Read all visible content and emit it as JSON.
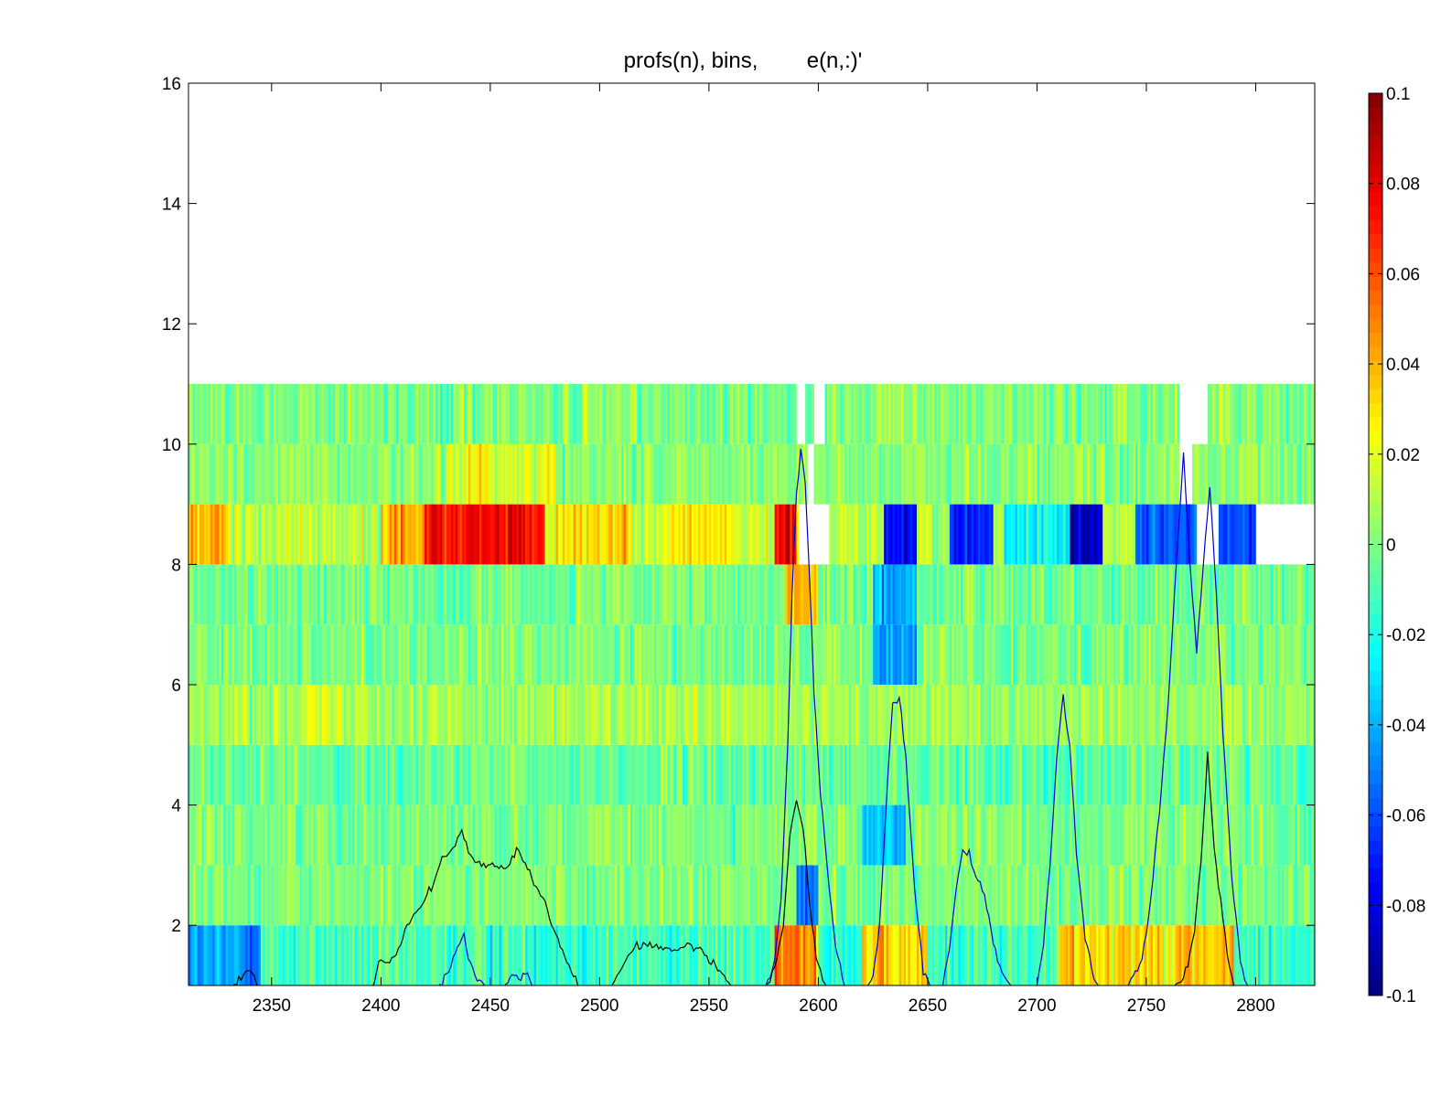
{
  "chart_data": [
    {
      "type": "heatmap",
      "title": "profs(n), bins,        e(n,:)'",
      "xlabel": "",
      "ylabel": "",
      "xlim": [
        2312,
        2827
      ],
      "ylim": [
        1,
        16
      ],
      "xticks": [
        2350,
        2400,
        2450,
        2500,
        2550,
        2600,
        2650,
        2700,
        2750,
        2800
      ],
      "yticks": [
        2,
        4,
        6,
        8,
        10,
        12,
        14,
        16
      ],
      "rows": [
        {
          "bin": 1,
          "y_range": [
            1,
            2
          ],
          "base": -0.012,
          "sd": 0.017,
          "regions": [
            {
              "x": [
                2312,
                2345
              ],
              "mean": -0.045
            },
            {
              "x": [
                2580,
                2600
              ],
              "mean": 0.05
            },
            {
              "x": [
                2620,
                2650
              ],
              "mean": 0.03
            },
            {
              "x": [
                2710,
                2790
              ],
              "mean": 0.035
            }
          ],
          "gaps": []
        },
        {
          "bin": 2,
          "y_range": [
            2,
            3
          ],
          "base": 0.0,
          "sd": 0.013,
          "regions": [
            {
              "x": [
                2590,
                2600
              ],
              "mean": -0.05
            }
          ],
          "gaps": []
        },
        {
          "bin": 3,
          "y_range": [
            3,
            4
          ],
          "base": 0.0,
          "sd": 0.013,
          "regions": [
            {
              "x": [
                2620,
                2640
              ],
              "mean": -0.035
            }
          ],
          "gaps": []
        },
        {
          "bin": 4,
          "y_range": [
            4,
            5
          ],
          "base": -0.005,
          "sd": 0.014,
          "regions": [],
          "gaps": []
        },
        {
          "bin": 5,
          "y_range": [
            5,
            6
          ],
          "base": 0.007,
          "sd": 0.013,
          "regions": [
            {
              "x": [
                2350,
                2400
              ],
              "mean": 0.015
            }
          ],
          "gaps": []
        },
        {
          "bin": 6,
          "y_range": [
            6,
            7
          ],
          "base": 0.0,
          "sd": 0.014,
          "regions": [
            {
              "x": [
                2625,
                2645
              ],
              "mean": -0.045
            }
          ],
          "gaps": []
        },
        {
          "bin": 7,
          "y_range": [
            7,
            8
          ],
          "base": -0.002,
          "sd": 0.014,
          "regions": [
            {
              "x": [
                2585,
                2600
              ],
              "mean": 0.04
            },
            {
              "x": [
                2625,
                2645
              ],
              "mean": -0.04
            }
          ],
          "gaps": []
        },
        {
          "bin": 8,
          "y_range": [
            8,
            9
          ],
          "base": 0.012,
          "sd": 0.014,
          "regions": [
            {
              "x": [
                2312,
                2330
              ],
              "mean": 0.04
            },
            {
              "x": [
                2400,
                2420
              ],
              "mean": 0.04
            },
            {
              "x": [
                2420,
                2475
              ],
              "mean": 0.075
            },
            {
              "x": [
                2480,
                2515
              ],
              "mean": 0.03
            },
            {
              "x": [
                2530,
                2560
              ],
              "mean": 0.03
            },
            {
              "x": [
                2580,
                2590
              ],
              "mean": 0.075
            },
            {
              "x": [
                2630,
                2645
              ],
              "mean": -0.075
            },
            {
              "x": [
                2660,
                2680
              ],
              "mean": -0.07
            },
            {
              "x": [
                2685,
                2715
              ],
              "mean": -0.025
            },
            {
              "x": [
                2715,
                2730
              ],
              "mean": -0.085
            },
            {
              "x": [
                2745,
                2800
              ],
              "mean": -0.06
            }
          ],
          "gaps": [
            [
              2591,
              2605
            ],
            [
              2773,
              2783
            ],
            [
              2800,
              2827
            ]
          ]
        },
        {
          "bin": 9,
          "y_range": [
            9,
            10
          ],
          "base": 0.003,
          "sd": 0.014,
          "regions": [
            {
              "x": [
                2430,
                2480
              ],
              "mean": 0.02
            }
          ],
          "gaps": [
            [
              2595,
              2598
            ],
            [
              2765,
              2771
            ]
          ]
        },
        {
          "bin": 10,
          "y_range": [
            10,
            11
          ],
          "base": 0.0,
          "sd": 0.015,
          "regions": [],
          "gaps": [
            [
              2590,
              2594
            ],
            [
              2598,
              2603
            ],
            [
              2765,
              2778
            ]
          ]
        }
      ],
      "series": [
        {
          "color": "#000000",
          "x": [
            2312,
            2320,
            2330,
            2335,
            2340,
            2345,
            2352,
            2360,
            2375,
            2395,
            2400,
            2403,
            2407,
            2412,
            2418,
            2423,
            2428,
            2433,
            2437,
            2442,
            2447,
            2452,
            2457,
            2462,
            2466,
            2470,
            2475,
            2480,
            2485,
            2490,
            2495,
            2500,
            2505,
            2510,
            2515,
            2520,
            2525,
            2530,
            2535,
            2540,
            2545,
            2550,
            2555,
            2560,
            2565,
            2570,
            2575,
            2578,
            2581,
            2584,
            2587,
            2590,
            2593,
            2596,
            2599,
            2602,
            2605,
            2608,
            2612,
            2616,
            2620,
            2625,
            2630,
            2635,
            2640,
            2645,
            2650,
            2655,
            2660,
            2665,
            2670,
            2675,
            2680,
            2685,
            2690,
            2695,
            2700,
            2705,
            2710,
            2715,
            2720,
            2725,
            2730,
            2735,
            2740,
            2745,
            2750,
            2755,
            2760,
            2763,
            2766,
            2769,
            2772,
            2775,
            2778,
            2781,
            2784,
            2787,
            2790,
            2795,
            2800,
            2827
          ],
          "y": [
            0.9,
            0.95,
            0.9,
            1.1,
            1.25,
            0.9,
            0.8,
            0.8,
            0.8,
            0.85,
            1.45,
            1.4,
            1.5,
            2.0,
            2.3,
            2.6,
            3.1,
            3.3,
            3.55,
            3.1,
            3.0,
            3.0,
            2.9,
            3.3,
            3.0,
            2.7,
            2.4,
            1.8,
            1.4,
            1.0,
            0.9,
            0.85,
            0.95,
            1.3,
            1.6,
            1.7,
            1.65,
            1.6,
            1.6,
            1.65,
            1.6,
            1.45,
            1.25,
            1.0,
            0.9,
            0.85,
            0.9,
            1.1,
            1.4,
            2.0,
            3.5,
            4.1,
            3.6,
            2.4,
            1.5,
            1.1,
            0.9,
            0.9,
            0.9,
            0.9,
            0.9,
            0.9,
            0.9,
            0.9,
            0.9,
            0.9,
            0.9,
            0.9,
            0.9,
            0.9,
            0.9,
            0.9,
            0.9,
            0.9,
            0.9,
            0.9,
            0.9,
            0.9,
            0.9,
            0.9,
            0.9,
            0.9,
            0.9,
            0.9,
            0.9,
            0.9,
            0.9,
            0.9,
            0.9,
            1.0,
            1.1,
            1.3,
            1.9,
            3.0,
            4.9,
            3.3,
            2.4,
            1.5,
            1.0,
            0.9,
            0.9,
            0.9
          ]
        },
        {
          "color": "#0000cc",
          "x": [
            2312,
            2425,
            2430,
            2435,
            2438,
            2441,
            2445,
            2450,
            2455,
            2460,
            2463,
            2467,
            2470,
            2480,
            2570,
            2575,
            2580,
            2583,
            2586,
            2588,
            2590,
            2592,
            2594,
            2596,
            2598,
            2601,
            2605,
            2608,
            2612,
            2615,
            2620,
            2625,
            2628,
            2631,
            2634,
            2637,
            2640,
            2644,
            2648,
            2652,
            2656,
            2660,
            2663,
            2666,
            2669,
            2672,
            2676,
            2680,
            2684,
            2690,
            2695,
            2700,
            2703,
            2706,
            2709,
            2712,
            2715,
            2718,
            2722,
            2726,
            2730,
            2740,
            2748,
            2752,
            2756,
            2760,
            2764,
            2767,
            2770,
            2773,
            2776,
            2779,
            2782,
            2785,
            2789,
            2793,
            2797,
            2827
          ],
          "y": [
            0.9,
            0.9,
            1.2,
            1.6,
            1.8,
            1.3,
            1.1,
            0.9,
            0.9,
            1.2,
            1.1,
            1.2,
            0.9,
            0.85,
            0.85,
            0.9,
            1.4,
            2.5,
            5.0,
            7.5,
            9.2,
            9.9,
            9.4,
            7.8,
            5.9,
            4.2,
            2.6,
            1.6,
            1.0,
            0.9,
            0.9,
            1.1,
            2.0,
            4.0,
            5.7,
            5.8,
            4.8,
            2.6,
            1.3,
            0.9,
            0.9,
            1.6,
            2.6,
            3.3,
            3.2,
            2.8,
            2.5,
            1.7,
            1.2,
            0.9,
            0.9,
            1.0,
            1.7,
            3.0,
            4.8,
            5.8,
            5.0,
            3.2,
            1.8,
            1.1,
            0.9,
            0.9,
            1.4,
            2.4,
            3.9,
            5.7,
            8.2,
            9.8,
            8.0,
            6.5,
            8.0,
            9.3,
            7.5,
            5.2,
            2.8,
            1.4,
            0.9,
            0.9
          ]
        }
      ],
      "colorbar": {
        "min": -0.1,
        "max": 0.1,
        "colormap": "jet",
        "ticks": [
          "0.1",
          "0.08",
          "0.06",
          "0.04",
          "0.02",
          "0",
          "-0.02",
          "-0.04",
          "-0.06",
          "-0.08",
          "-0.1"
        ]
      }
    }
  ]
}
